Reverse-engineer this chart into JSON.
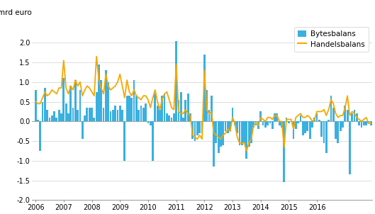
{
  "ylabel": "mrd euro",
  "ylim": [
    -2.0,
    2.5
  ],
  "yticks": [
    -2.0,
    -1.5,
    -1.0,
    -0.5,
    0.0,
    0.5,
    1.0,
    1.5,
    2.0
  ],
  "bar_color": "#3ab0e0",
  "line_color": "#f5a800",
  "legend_bar_label": "Bytesbalans",
  "legend_line_label": "Handelsbalans",
  "background_color": "#ffffff",
  "start_year": 2006,
  "num_years": 10,
  "bytesbalans": [
    0.8,
    0.05,
    -0.75,
    0.5,
    0.85,
    0.3,
    0.1,
    0.15,
    0.25,
    0.1,
    0.3,
    0.2,
    1.1,
    0.45,
    0.2,
    0.9,
    0.35,
    1.05,
    0.3,
    0.8,
    -0.45,
    0.15,
    0.35,
    0.35,
    0.35,
    0.1,
    0.75,
    1.45,
    1.05,
    0.35,
    1.3,
    1.0,
    0.25,
    0.3,
    0.4,
    0.3,
    0.4,
    0.3,
    -1.0,
    0.65,
    0.65,
    0.6,
    1.05,
    0.65,
    0.3,
    0.4,
    0.35,
    0.45,
    -0.05,
    -0.1,
    -1.0,
    0.7,
    0.4,
    0.3,
    0.65,
    0.7,
    0.2,
    0.15,
    0.1,
    0.2,
    2.05,
    0.55,
    0.75,
    0.1,
    0.55,
    0.7,
    0.2,
    -0.45,
    -0.5,
    -0.35,
    -0.3,
    -0.3,
    1.7,
    0.8,
    0.3,
    0.65,
    -1.15,
    -0.55,
    -0.8,
    -0.65,
    -0.6,
    -0.25,
    -0.3,
    -0.25,
    0.35,
    -0.1,
    -0.3,
    -0.6,
    -0.6,
    -0.55,
    -0.95,
    -0.65,
    -0.55,
    -0.15,
    -0.1,
    -0.2,
    0.25,
    -0.1,
    -0.15,
    -0.1,
    -0.05,
    -0.2,
    0.2,
    0.2,
    -0.1,
    -0.15,
    -1.55,
    0.1,
    -0.05,
    0.0,
    -0.45,
    -0.2,
    -0.05,
    0.15,
    -0.35,
    -0.3,
    -0.25,
    -0.45,
    -0.15,
    0.1,
    0.2,
    0.05,
    -0.4,
    -0.55,
    -0.8,
    0.05,
    0.65,
    0.35,
    -0.45,
    -0.55,
    -0.25,
    -0.15,
    0.4,
    0.3,
    -1.35,
    0.2,
    0.3,
    0.2,
    -0.1,
    -0.15,
    -0.1,
    -0.1,
    -0.05,
    -0.1
  ],
  "handelsbalans": [
    0.5,
    0.45,
    0.45,
    0.6,
    0.75,
    0.65,
    0.7,
    0.8,
    0.75,
    0.7,
    0.85,
    0.85,
    1.55,
    0.85,
    0.7,
    0.9,
    0.8,
    1.05,
    0.9,
    1.0,
    0.65,
    0.8,
    0.9,
    0.85,
    0.75,
    0.65,
    1.65,
    1.05,
    0.85,
    0.7,
    1.2,
    0.9,
    0.8,
    0.85,
    0.9,
    1.0,
    1.2,
    0.9,
    0.6,
    1.05,
    0.75,
    0.65,
    0.8,
    0.65,
    0.6,
    0.55,
    0.65,
    0.65,
    0.55,
    0.35,
    0.6,
    0.8,
    0.5,
    0.3,
    0.55,
    0.7,
    0.75,
    0.55,
    0.35,
    0.3,
    1.45,
    0.25,
    0.2,
    0.2,
    0.3,
    0.2,
    0.15,
    -0.35,
    -0.4,
    -0.45,
    -0.35,
    -0.45,
    1.3,
    0.3,
    0.2,
    0.25,
    -0.3,
    -0.35,
    -0.4,
    -0.45,
    -0.35,
    -0.3,
    -0.2,
    -0.25,
    0.1,
    -0.05,
    -0.4,
    -0.55,
    -0.55,
    -0.55,
    -0.75,
    -0.55,
    -0.45,
    -0.1,
    -0.05,
    -0.1,
    0.1,
    0.05,
    0.0,
    0.1,
    0.1,
    0.05,
    0.15,
    0.15,
    0.0,
    0.0,
    -0.65,
    0.05,
    0.05,
    0.05,
    -0.2,
    0.1,
    0.15,
    0.2,
    0.1,
    0.1,
    0.15,
    0.1,
    0.0,
    0.05,
    0.25,
    0.25,
    0.25,
    0.3,
    0.15,
    0.3,
    0.55,
    0.45,
    0.2,
    0.1,
    0.15,
    0.15,
    0.35,
    0.65,
    0.15,
    0.25,
    0.2,
    0.1,
    0.05,
    0.0,
    0.05,
    0.1,
    -0.05,
    -0.05
  ]
}
